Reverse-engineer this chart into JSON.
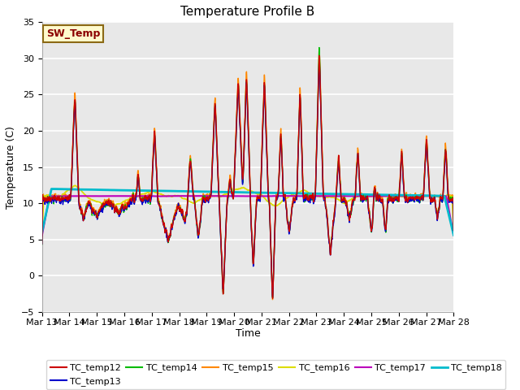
{
  "title": "Temperature Profile B",
  "xlabel": "Time",
  "ylabel": "Temperature (C)",
  "ylim": [
    -5,
    35
  ],
  "background_color": "#e8e8e8",
  "figure_bg": "#ffffff",
  "grid_color": "#ffffff",
  "series": {
    "TC_temp12": {
      "color": "#cc0000",
      "lw": 1.0
    },
    "TC_temp13": {
      "color": "#0000cc",
      "lw": 1.0
    },
    "TC_temp14": {
      "color": "#00bb00",
      "lw": 1.0
    },
    "TC_temp15": {
      "color": "#ff8800",
      "lw": 1.0
    },
    "TC_temp16": {
      "color": "#dddd00",
      "lw": 1.2
    },
    "TC_temp17": {
      "color": "#bb00bb",
      "lw": 1.5
    },
    "TC_temp18": {
      "color": "#00bbcc",
      "lw": 2.0
    }
  },
  "sw_temp_annotation": {
    "text": "SW_Temp",
    "color": "#8b0000",
    "bg": "#fffacd",
    "edge": "#8b6914"
  },
  "tick_labels": [
    "Mar 13",
    "Mar 14",
    "Mar 15",
    "Mar 16",
    "Mar 17",
    "Mar 18",
    "Mar 19",
    "Mar 20",
    "Mar 21",
    "Mar 22",
    "Mar 23",
    "Mar 24",
    "Mar 25",
    "Mar 26",
    "Mar 27",
    "Mar 28"
  ],
  "yticks": [
    -5,
    0,
    5,
    10,
    15,
    20,
    25,
    30,
    35
  ]
}
